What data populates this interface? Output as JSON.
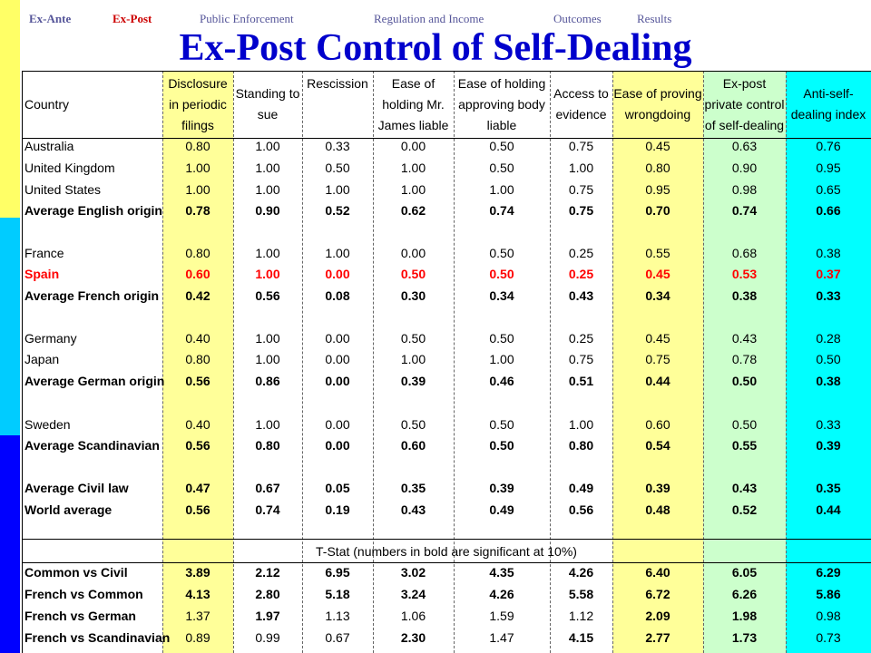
{
  "nav": {
    "items": [
      "Ex-Ante",
      "Ex-Post",
      "Public Enforcement",
      "Regulation and Income",
      "Outcomes",
      "Results"
    ],
    "active_index": 1
  },
  "title": "Ex-Post Control of Self-Dealing",
  "table": {
    "headers": [
      "Country",
      "Disclosure\nin periodic\nfilings",
      "Standing to\nsue",
      "Rescission",
      "Ease of\nholding Mr.\nJames liable",
      "Ease of holding\napproving body\nliable",
      "Access to\nevidence",
      "Ease of proving\nwrongdoing",
      "Ex-post\nprivate control\nof self-dealing",
      "Anti-self-\ndealing index"
    ],
    "column_colors": {
      "yellow": "#ffff99",
      "green": "#ccffcc",
      "cyan": "#00ffff"
    },
    "rows": [
      {
        "name": "Australia",
        "values": [
          "0.80",
          "1.00",
          "0.33",
          "0.00",
          "0.50",
          "0.75",
          "0.45",
          "0.63",
          "0.76"
        ],
        "style": "normal"
      },
      {
        "name": "United Kingdom",
        "values": [
          "1.00",
          "1.00",
          "0.50",
          "1.00",
          "0.50",
          "1.00",
          "0.80",
          "0.90",
          "0.95"
        ],
        "style": "normal"
      },
      {
        "name": "United States",
        "values": [
          "1.00",
          "1.00",
          "1.00",
          "1.00",
          "1.00",
          "0.75",
          "0.95",
          "0.98",
          "0.65"
        ],
        "style": "normal"
      },
      {
        "name": "Average English origin",
        "values": [
          "0.78",
          "0.90",
          "0.52",
          "0.62",
          "0.74",
          "0.75",
          "0.70",
          "0.74",
          "0.66"
        ],
        "style": "bold"
      },
      {
        "name": "France",
        "values": [
          "0.80",
          "1.00",
          "1.00",
          "0.00",
          "0.50",
          "0.25",
          "0.55",
          "0.68",
          "0.38"
        ],
        "style": "normal"
      },
      {
        "name": "Spain",
        "values": [
          "0.60",
          "1.00",
          "0.00",
          "0.50",
          "0.50",
          "0.25",
          "0.45",
          "0.53",
          "0.37"
        ],
        "style": "red"
      },
      {
        "name": "Average French origin",
        "values": [
          "0.42",
          "0.56",
          "0.08",
          "0.30",
          "0.34",
          "0.43",
          "0.34",
          "0.38",
          "0.33"
        ],
        "style": "bold"
      },
      {
        "name": "Germany",
        "values": [
          "0.40",
          "1.00",
          "0.00",
          "0.50",
          "0.50",
          "0.25",
          "0.45",
          "0.43",
          "0.28"
        ],
        "style": "normal"
      },
      {
        "name": "Japan",
        "values": [
          "0.80",
          "1.00",
          "0.00",
          "1.00",
          "1.00",
          "0.75",
          "0.75",
          "0.78",
          "0.50"
        ],
        "style": "normal"
      },
      {
        "name": "Average German origin",
        "values": [
          "0.56",
          "0.86",
          "0.00",
          "0.39",
          "0.46",
          "0.51",
          "0.44",
          "0.50",
          "0.38"
        ],
        "style": "bold"
      },
      {
        "name": "Sweden",
        "values": [
          "0.40",
          "1.00",
          "0.00",
          "0.50",
          "0.50",
          "1.00",
          "0.60",
          "0.50",
          "0.33"
        ],
        "style": "normal"
      },
      {
        "name": "Average Scandinavian",
        "values": [
          "0.56",
          "0.80",
          "0.00",
          "0.60",
          "0.50",
          "0.80",
          "0.54",
          "0.55",
          "0.39"
        ],
        "style": "bold"
      },
      {
        "name": "Average Civil law",
        "values": [
          "0.47",
          "0.67",
          "0.05",
          "0.35",
          "0.39",
          "0.49",
          "0.39",
          "0.43",
          "0.35"
        ],
        "style": "bold"
      },
      {
        "name": "World average",
        "values": [
          "0.56",
          "0.74",
          "0.19",
          "0.43",
          "0.49",
          "0.56",
          "0.48",
          "0.52",
          "0.44"
        ],
        "style": "bold"
      }
    ],
    "tstat_label": "T-Stat (numbers in bold are significant at 10%)",
    "tstat_rows": [
      {
        "name": "Common vs Civil",
        "values": [
          "3.89",
          "2.12",
          "6.95",
          "3.02",
          "4.35",
          "4.26",
          "6.40",
          "6.05",
          "6.29"
        ],
        "bold": [
          true,
          true,
          true,
          true,
          true,
          true,
          true,
          true,
          true
        ]
      },
      {
        "name": "French vs Common",
        "values": [
          "4.13",
          "2.80",
          "5.18",
          "3.24",
          "4.26",
          "5.58",
          "6.72",
          "6.26",
          "5.86"
        ],
        "bold": [
          true,
          true,
          true,
          true,
          true,
          true,
          true,
          true,
          true
        ]
      },
      {
        "name": "French vs German",
        "values": [
          "1.37",
          "1.97",
          "1.13",
          "1.06",
          "1.59",
          "1.12",
          "2.09",
          "1.98",
          "0.98"
        ],
        "bold": [
          false,
          true,
          false,
          false,
          false,
          false,
          true,
          true,
          false
        ]
      },
      {
        "name": "French vs Scandinavian",
        "values": [
          "0.89",
          "0.99",
          "0.67",
          "2.30",
          "1.47",
          "4.15",
          "2.77",
          "1.73",
          "0.73"
        ],
        "bold": [
          false,
          false,
          false,
          true,
          false,
          true,
          true,
          true,
          false
        ]
      }
    ]
  }
}
